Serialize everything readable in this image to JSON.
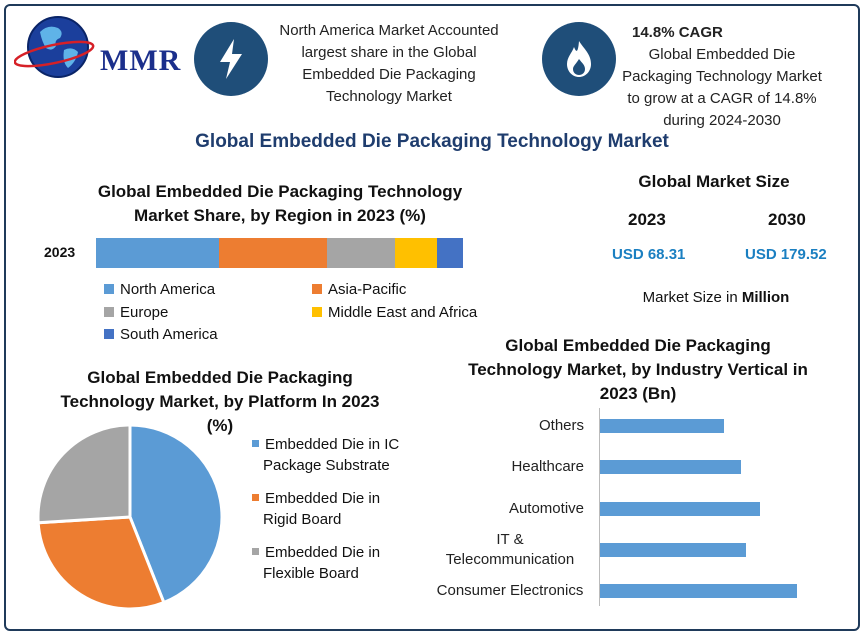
{
  "brand": {
    "logo_text": "MMR"
  },
  "header": {
    "block1": {
      "icon": "lightning-icon",
      "text": "North America Market Accounted largest share in the Global Embedded Die Packaging Technology Market"
    },
    "block2": {
      "icon": "flame-icon",
      "title": "14.8% CAGR",
      "text": "Global Embedded Die Packaging Technology Market to grow at a CAGR of 14.8% during 2024-2030"
    }
  },
  "main_title": "Global Embedded Die Packaging Technology Market",
  "market_size": {
    "title": "Global Market Size",
    "year1": "2023",
    "value1": "USD 68.31",
    "year2": "2030",
    "value2": "USD 179.52",
    "note_prefix": "Market Size in ",
    "note_unit": "Million"
  },
  "chart_data": [
    {
      "type": "bar",
      "orientation": "horizontal-stacked",
      "title": "Global Embedded Die Packaging Technology Market Share, by Region in 2023 (%)",
      "categories": [
        "2023"
      ],
      "series": [
        {
          "name": "North America",
          "values": [
            33.5
          ],
          "color": "#5b9bd5"
        },
        {
          "name": "Asia-Pacific",
          "values": [
            29.5
          ],
          "color": "#ed7d31"
        },
        {
          "name": "Europe",
          "values": [
            18.5
          ],
          "color": "#a5a5a5"
        },
        {
          "name": "Middle East and Africa",
          "values": [
            11.3
          ],
          "color": "#ffc000"
        },
        {
          "name": "South America",
          "values": [
            7.2
          ],
          "color": "#4472c4"
        }
      ]
    },
    {
      "type": "pie",
      "title": "Global Embedded Die Packaging Technology Market, by Platform In 2023 (%)",
      "slices": [
        {
          "name": "Embedded Die in IC Package Substrate",
          "line1": "Embedded Die in IC",
          "line2": "Package Substrate",
          "value": 44,
          "color": "#5b9bd5"
        },
        {
          "name": "Embedded Die in Rigid Board",
          "line1": "Embedded Die in",
          "line2": "Rigid Board",
          "value": 30,
          "color": "#ed7d31"
        },
        {
          "name": "Embedded Die in Flexible Board",
          "line1": "Embedded Die in",
          "line2": "Flexible Board",
          "value": 26,
          "color": "#a5a5a5"
        }
      ]
    },
    {
      "type": "bar",
      "orientation": "horizontal",
      "title": "Global Embedded Die Packaging Technology Market, by Industry Vertical in 2023 (Bn)",
      "categories": [
        {
          "line1": "Others",
          "line2": ""
        },
        {
          "line1": "Healthcare",
          "line2": ""
        },
        {
          "line1": "Automotive",
          "line2": ""
        },
        {
          "line1": "IT &",
          "line2": "Telecommunication"
        },
        {
          "line1": "Consumer Electronics",
          "line2": ""
        }
      ],
      "values": [
        10.8,
        12.3,
        13.9,
        12.7,
        17.1
      ],
      "xlim": [
        0,
        20
      ],
      "color": "#5b9bd5"
    }
  ]
}
